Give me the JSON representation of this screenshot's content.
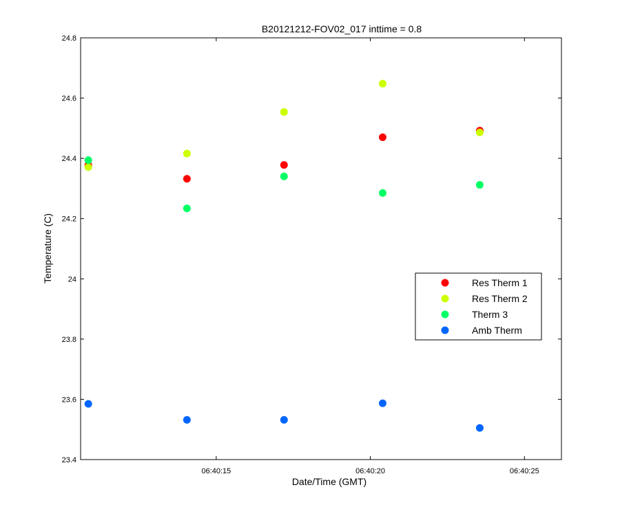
{
  "chart_data": {
    "type": "scatter",
    "title": "B20121212-FOV02_017 inttime = 0.8",
    "xlabel": "Date/Time (GMT)",
    "ylabel": "Temperature (C)",
    "x_unit": "time (HH:MM:SS GMT)",
    "xlim": [
      "06:40:10.6",
      "06:40:26.2"
    ],
    "ylim": [
      23.4,
      24.8
    ],
    "x_ticks": [
      "06:40:15",
      "06:40:20",
      "06:40:25"
    ],
    "y_ticks": [
      "23.4",
      "23.6",
      "23.8",
      "24",
      "24.2",
      "24.4",
      "24.6",
      "24.8"
    ],
    "x": [
      "06:40:10.85",
      "06:40:14.05",
      "06:40:17.2",
      "06:40:20.4",
      "06:40:23.55"
    ],
    "series": [
      {
        "name": "Res Therm 1",
        "color": "#ff0000",
        "values": [
          24.377,
          24.332,
          24.378,
          24.47,
          24.492
        ]
      },
      {
        "name": "Res Therm 2",
        "color": "#ccff00",
        "values": [
          24.371,
          24.416,
          24.554,
          24.648,
          24.486
        ]
      },
      {
        "name": "Therm 3",
        "color": "#00ff66",
        "values": [
          24.394,
          24.234,
          24.34,
          24.285,
          24.312
        ]
      },
      {
        "name": "Amb Therm",
        "color": "#0066ff",
        "values": [
          23.585,
          23.532,
          23.532,
          23.587,
          23.505
        ]
      }
    ],
    "grid": false,
    "legend_position": "center-right"
  }
}
